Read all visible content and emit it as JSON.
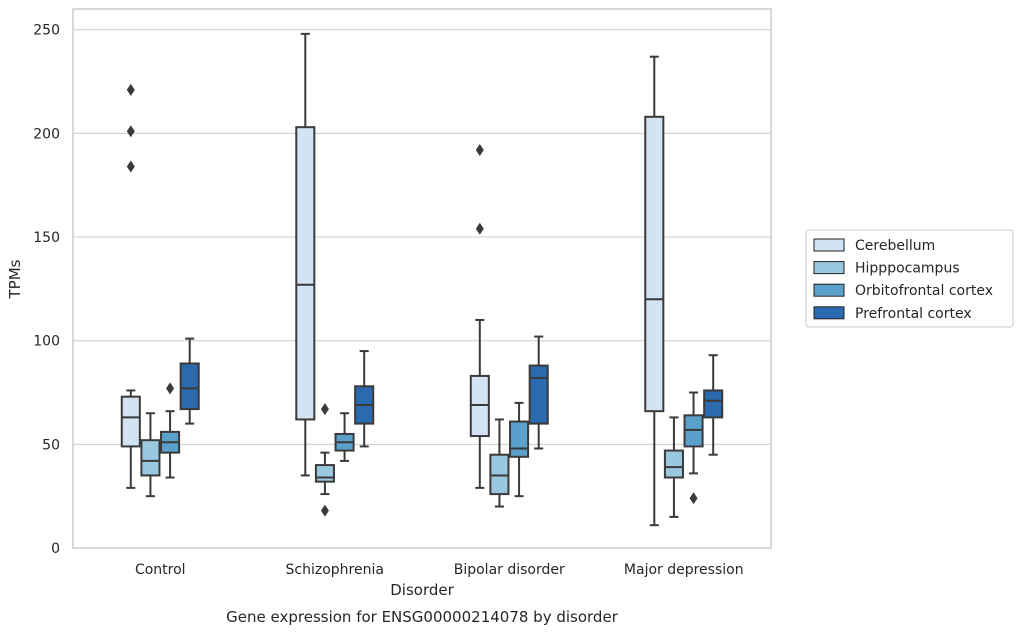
{
  "chart_data": {
    "type": "box",
    "title": "",
    "caption": "Gene expression for ENSG00000214078 by disorder",
    "xlabel": "Disorder",
    "ylabel": "TPMs",
    "ylim": [
      0,
      260
    ],
    "yticks": [
      0,
      50,
      100,
      150,
      200,
      250
    ],
    "grid": "horizontal",
    "legend_position": "right",
    "categories": [
      "Control",
      "Schizophrenia",
      "Bipolar disorder",
      "Major depression"
    ],
    "series": [
      {
        "name": "Cerebellum",
        "color": "#d2e3f3",
        "boxes": [
          {
            "whisker_low": 29,
            "q1": 49,
            "median": 63,
            "q3": 73,
            "whisker_high": 76,
            "outliers": [
              184,
              201,
              221
            ]
          },
          {
            "whisker_low": 35,
            "q1": 62,
            "median": 127,
            "q3": 203,
            "whisker_high": 248,
            "outliers": []
          },
          {
            "whisker_low": 29,
            "q1": 54,
            "median": 69,
            "q3": 83,
            "whisker_high": 110,
            "outliers": [
              154,
              192
            ]
          },
          {
            "whisker_low": 11,
            "q1": 66,
            "median": 120,
            "q3": 208,
            "whisker_high": 237,
            "outliers": []
          }
        ]
      },
      {
        "name": "Hipppocampus",
        "color": "#9ac8e0",
        "boxes": [
          {
            "whisker_low": 25,
            "q1": 35,
            "median": 42,
            "q3": 52,
            "whisker_high": 65,
            "outliers": []
          },
          {
            "whisker_low": 26,
            "q1": 32,
            "median": 34,
            "q3": 40,
            "whisker_high": 46,
            "outliers": [
              18,
              67
            ]
          },
          {
            "whisker_low": 20,
            "q1": 26,
            "median": 35,
            "q3": 45,
            "whisker_high": 62,
            "outliers": []
          },
          {
            "whisker_low": 15,
            "q1": 34,
            "median": 39,
            "q3": 47,
            "whisker_high": 63,
            "outliers": []
          }
        ]
      },
      {
        "name": "Orbitofrontal cortex",
        "color": "#5b9fcb",
        "boxes": [
          {
            "whisker_low": 34,
            "q1": 46,
            "median": 51,
            "q3": 56,
            "whisker_high": 66,
            "outliers": [
              77
            ]
          },
          {
            "whisker_low": 42,
            "q1": 47,
            "median": 51,
            "q3": 55,
            "whisker_high": 65,
            "outliers": []
          },
          {
            "whisker_low": 25,
            "q1": 44,
            "median": 48,
            "q3": 61,
            "whisker_high": 70,
            "outliers": []
          },
          {
            "whisker_low": 36,
            "q1": 49,
            "median": 57,
            "q3": 64,
            "whisker_high": 75,
            "outliers": [
              24
            ]
          }
        ]
      },
      {
        "name": "Prefrontal cortex",
        "color": "#2b6aae",
        "boxes": [
          {
            "whisker_low": 60,
            "q1": 67,
            "median": 77,
            "q3": 89,
            "whisker_high": 101,
            "outliers": []
          },
          {
            "whisker_low": 49,
            "q1": 60,
            "median": 69,
            "q3": 78,
            "whisker_high": 95,
            "outliers": []
          },
          {
            "whisker_low": 48,
            "q1": 60,
            "median": 82,
            "q3": 88,
            "whisker_high": 102,
            "outliers": []
          },
          {
            "whisker_low": 45,
            "q1": 63,
            "median": 71,
            "q3": 76,
            "whisker_high": 93,
            "outliers": []
          }
        ]
      }
    ]
  }
}
